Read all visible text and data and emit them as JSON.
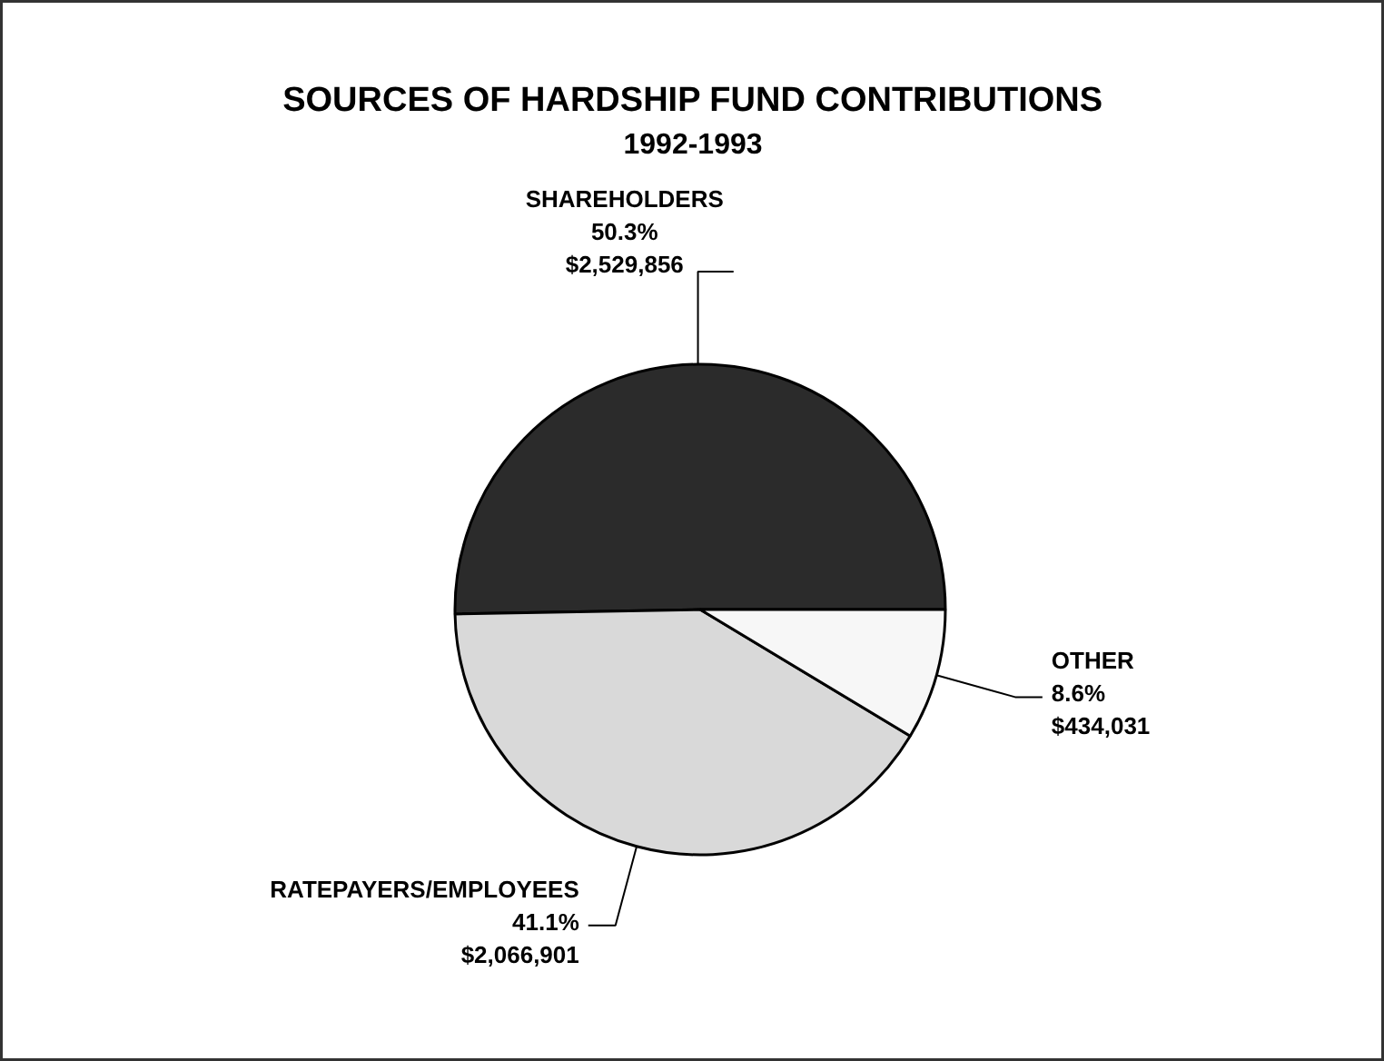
{
  "chart_data": {
    "type": "pie",
    "title": "SOURCES OF HARDSHIP FUND CONTRIBUTIONS",
    "subtitle": "1992-1993",
    "categories": [
      "SHAREHOLDERS",
      "RATEPAYERS/EMPLOYEES",
      "OTHER"
    ],
    "values": [
      2529856,
      2066901,
      434031
    ],
    "value_labels": [
      "50.3%\n$2,529,856",
      "41.1%\n$2,066,901",
      "8.6%\n$434,031"
    ],
    "colors": [
      "#2b2b2b",
      "#d9d9d9",
      "#f7f7f7"
    ]
  }
}
